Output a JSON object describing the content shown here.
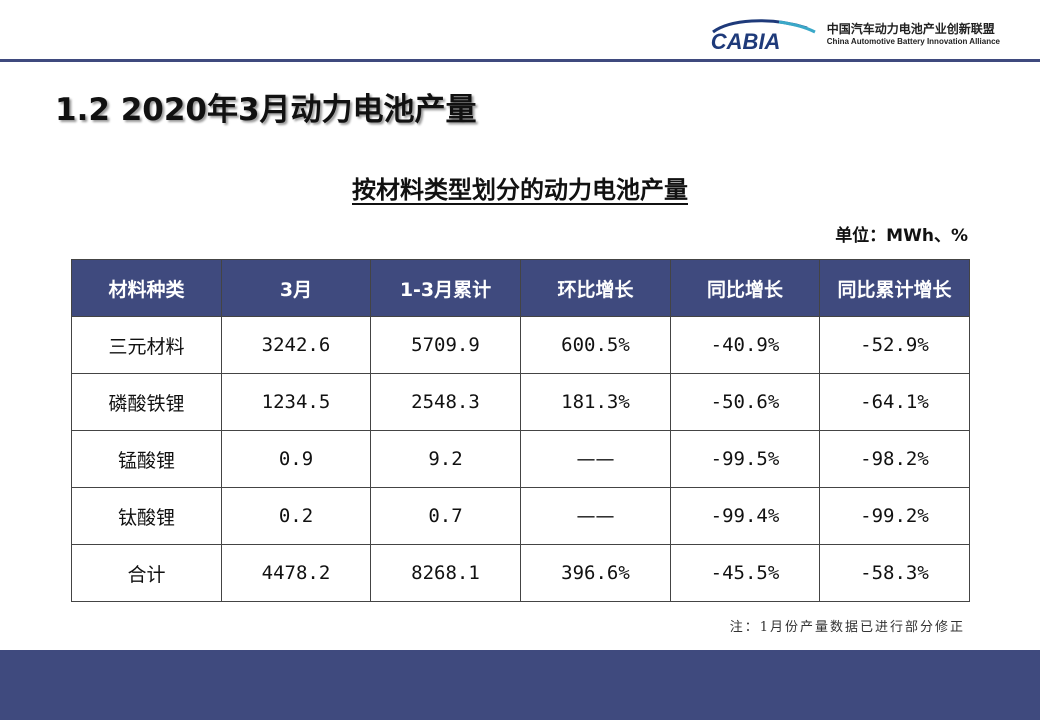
{
  "header": {
    "logo_word": "CABIA",
    "org_cn": "中国汽车动力电池产业创新联盟",
    "org_en": "China Automotive Battery Innovation Alliance",
    "accent_color": "#3f4a7e"
  },
  "page_title": "1.2 2020年3月动力电池产量",
  "table_title": "按材料类型划分的动力电池产量",
  "unit": "单位：MWh、%",
  "table": {
    "headers": [
      "材料种类",
      "3月",
      "1-3月累计",
      "环比增长",
      "同比增长",
      "同比累计增长"
    ],
    "rows": [
      [
        "三元材料",
        "3242.6",
        "5709.9",
        "600.5%",
        "-40.9%",
        "-52.9%"
      ],
      [
        "磷酸铁锂",
        "1234.5",
        "2548.3",
        "181.3%",
        "-50.6%",
        "-64.1%"
      ],
      [
        "锰酸锂",
        "0.9",
        "9.2",
        "——",
        "-99.5%",
        "-98.2%"
      ],
      [
        "钛酸锂",
        "0.2",
        "0.7",
        "——",
        "-99.4%",
        "-99.2%"
      ],
      [
        "合计",
        "4478.2",
        "8268.1",
        "396.6%",
        "-45.5%",
        "-58.3%"
      ]
    ]
  },
  "note": "注：1月份产量数据已进行部分修正"
}
